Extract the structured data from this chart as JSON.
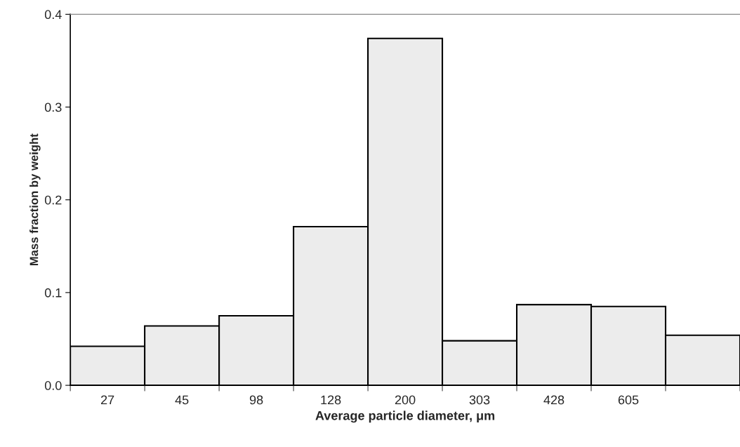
{
  "chart_data": {
    "type": "bar",
    "xlabel": "Average particle diameter, μm",
    "ylabel": "Mass fraction by weight",
    "categories": [
      "27",
      "45",
      "98",
      "128",
      "200",
      "303",
      "428",
      "605",
      null
    ],
    "values": [
      0.042,
      0.064,
      0.075,
      0.171,
      0.374,
      0.048,
      0.087,
      0.085,
      0.054
    ],
    "color": "#ececec",
    "ylim": [
      0,
      0.4
    ],
    "yticks": [
      {
        "value": 0,
        "label": "0.0"
      },
      0.1,
      0.2,
      0.3,
      0.4
    ],
    "grid": false,
    "legend": false
  }
}
